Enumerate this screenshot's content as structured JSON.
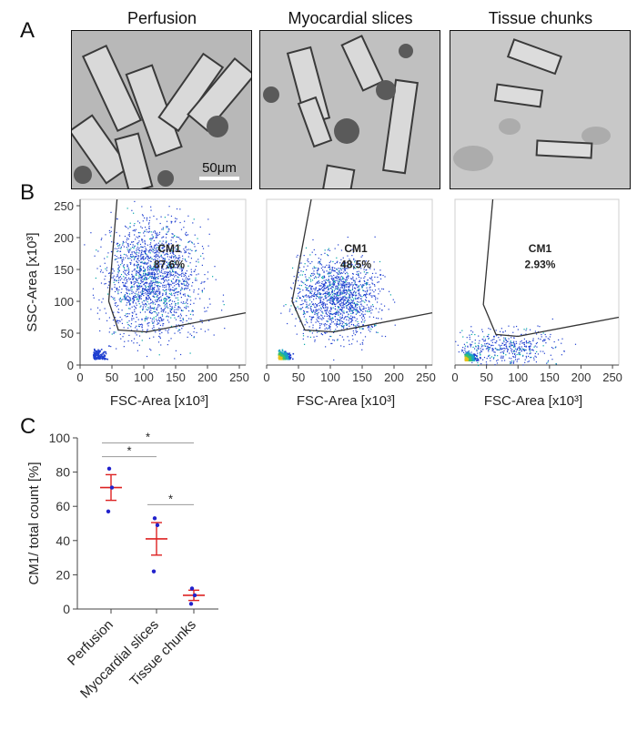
{
  "panels": {
    "a": "A",
    "b": "B",
    "c": "C"
  },
  "micrographs": [
    {
      "title": "Perfusion"
    },
    {
      "title": "Myocardial slices"
    },
    {
      "title": "Tissue chunks"
    }
  ],
  "scale_bar": "50μm",
  "chart_data": [
    {
      "type": "scatter",
      "panel": "B",
      "title": "Perfusion",
      "xlabel": "FSC-Area [x10³]",
      "ylabel": "SSC-Area [x10³]",
      "xlim": [
        0,
        260
      ],
      "ylim": [
        0,
        260
      ],
      "xticks": [
        0,
        50,
        100,
        150,
        200,
        250
      ],
      "yticks": [
        0,
        50,
        100,
        150,
        200,
        250
      ],
      "gate_label": "CM1",
      "gate_percent": "87.6%",
      "gate_polygon": [
        [
          58,
          260
        ],
        [
          45,
          100
        ],
        [
          60,
          55
        ],
        [
          105,
          52
        ],
        [
          260,
          82
        ]
      ]
    },
    {
      "type": "scatter",
      "panel": "B",
      "title": "Myocardial slices",
      "xlabel": "FSC-Area [x10³]",
      "ylabel": "",
      "xlim": [
        0,
        260
      ],
      "ylim": [
        0,
        260
      ],
      "xticks": [
        0,
        50,
        100,
        150,
        200,
        250
      ],
      "yticks": [],
      "gate_label": "CM1",
      "gate_percent": "48.5%",
      "gate_polygon": [
        [
          70,
          260
        ],
        [
          40,
          100
        ],
        [
          60,
          55
        ],
        [
          105,
          52
        ],
        [
          260,
          82
        ]
      ]
    },
    {
      "type": "scatter",
      "panel": "B",
      "title": "Tissue chunks",
      "xlabel": "FSC-Area [x10³]",
      "ylabel": "",
      "xlim": [
        0,
        260
      ],
      "ylim": [
        0,
        260
      ],
      "xticks": [
        0,
        50,
        100,
        150,
        200,
        250
      ],
      "yticks": [],
      "gate_label": "CM1",
      "gate_percent": "2.93%",
      "gate_polygon": [
        [
          60,
          260
        ],
        [
          45,
          95
        ],
        [
          65,
          48
        ],
        [
          100,
          45
        ],
        [
          260,
          75
        ]
      ]
    },
    {
      "type": "scatter",
      "panel": "C",
      "ylabel": "CM1/ total count [%]",
      "ylim": [
        0,
        100
      ],
      "yticks": [
        0,
        20,
        40,
        60,
        80,
        100
      ],
      "categories": [
        "Perfusion",
        "Myocardial slices",
        "Tissue chunks"
      ],
      "points": [
        [
          82,
          71,
          57
        ],
        [
          53,
          49,
          22
        ],
        [
          12,
          8,
          3
        ]
      ],
      "mean": [
        71,
        41,
        8
      ],
      "sem": [
        7.5,
        9.5,
        3
      ],
      "significance": [
        {
          "from": 0,
          "to": 1,
          "y": 89,
          "label": "*"
        },
        {
          "from": 0,
          "to": 2,
          "y": 97,
          "label": "*"
        },
        {
          "from": 1,
          "to": 2,
          "y": 61,
          "label": "*"
        }
      ],
      "colors": {
        "points": "#2222cc",
        "mean": "#dd2222"
      }
    }
  ]
}
